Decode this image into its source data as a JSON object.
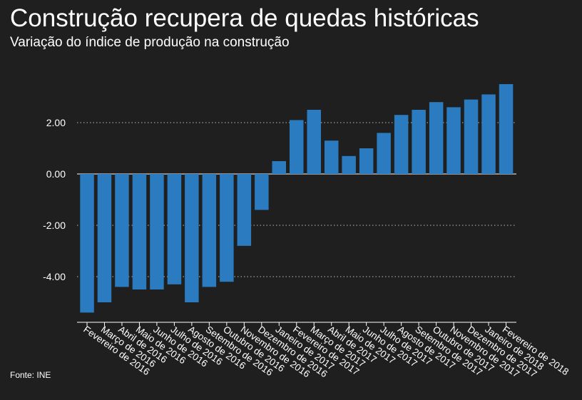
{
  "header": {
    "title": "Construção recupera de quedas históricas",
    "subtitle": "Variação do índice de produção na construção"
  },
  "footer": {
    "source": "Fonte: INE"
  },
  "colors": {
    "background": "#1f1f1f",
    "bar": "#2a7bbf",
    "text": "#ffffff",
    "grid": "#bdbdbd"
  },
  "chart_data": {
    "type": "bar",
    "title": "Construção recupera de quedas históricas",
    "subtitle": "Variação do índice de produção na construção",
    "xlabel": "",
    "ylabel": "",
    "ylim": [
      -5.8,
      3.6
    ],
    "yticks": [
      -4,
      -2,
      0,
      2
    ],
    "ytick_labels": [
      "-4.00",
      "-2.00",
      "0.00",
      "2.00"
    ],
    "grid": "horizontal dotted",
    "categories": [
      "Fevereiro de 2016",
      "Março de 2016",
      "Abril de 2016",
      "Maio de 2016",
      "Junho de 2016",
      "Julho de 2016",
      "Agosto de 2016",
      "Setembro de 2016",
      "Outubro de 2016",
      "Novembro de 2016",
      "Dezembro de 2016",
      "Janeiro de 2017",
      "Fevereiro de 2017",
      "Março de 2017",
      "Abril de 2017",
      "Maio de 2017",
      "Junho de 2017",
      "Julho de 2017",
      "Agosto de 2017",
      "Setembro de 2017",
      "Outubro de 2017",
      "Novembro de 2017",
      "Dezembro de 2017",
      "Janeiro de 2018",
      "Fevereiro de 2018"
    ],
    "values": [
      -5.4,
      -5.0,
      -4.4,
      -4.5,
      -4.5,
      -4.3,
      -5.0,
      -4.4,
      -4.2,
      -2.8,
      -1.4,
      0.5,
      2.1,
      2.5,
      1.3,
      0.7,
      1.0,
      1.6,
      2.3,
      2.5,
      2.8,
      2.6,
      2.9,
      3.1,
      3.5
    ]
  }
}
